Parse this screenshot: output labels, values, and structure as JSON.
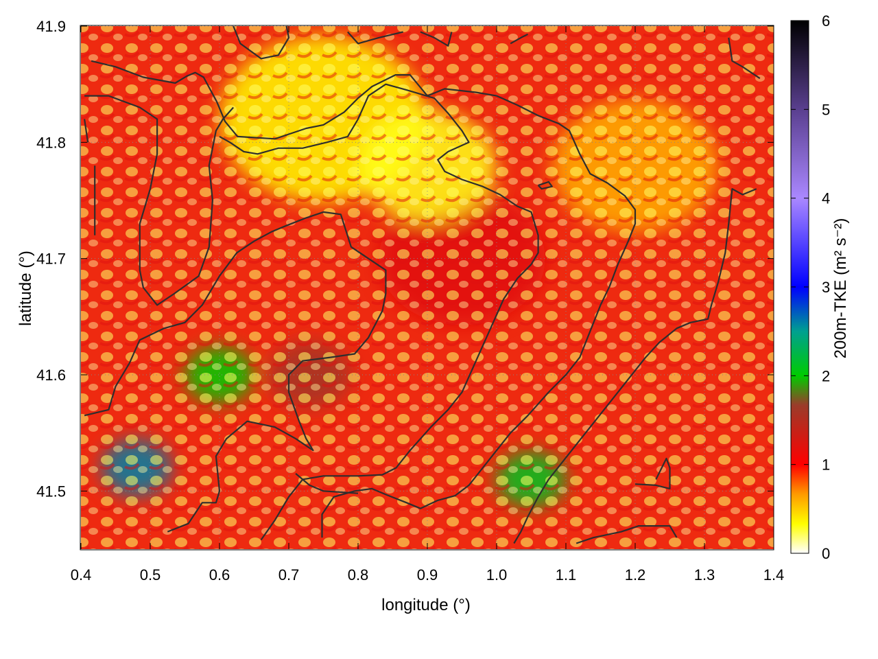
{
  "chart_data": {
    "type": "heatmap",
    "title": "",
    "xlabel": "longitude (°)",
    "ylabel": "latitude (°)",
    "xlim": [
      0.4,
      1.4
    ],
    "ylim": [
      41.45,
      41.9
    ],
    "x_ticks": [
      0.4,
      0.5,
      0.6,
      0.7,
      0.8,
      0.9,
      1.0,
      1.1,
      1.2,
      1.3,
      1.4
    ],
    "x_tick_labels": [
      "0.4",
      "0.5",
      "0.6",
      "0.7",
      "0.8",
      "0.9",
      "1.0",
      "1.1",
      "1.2",
      "1.3",
      "1.4"
    ],
    "y_ticks": [
      41.5,
      41.6,
      41.7,
      41.8,
      41.9
    ],
    "y_tick_labels": [
      "41.5",
      "41.6",
      "41.7",
      "41.8",
      "41.9"
    ],
    "grid": true,
    "colorbar": {
      "label": "200m-TKE (m² s⁻²)",
      "range": [
        0,
        6
      ],
      "ticks": [
        0,
        1,
        2,
        3,
        4,
        5,
        6
      ],
      "tick_labels": [
        "0",
        "1",
        "2",
        "3",
        "4",
        "5",
        "6"
      ],
      "palette": [
        {
          "value": 0,
          "color": "#ffffff"
        },
        {
          "value": 0.33,
          "color": "#ffff00"
        },
        {
          "value": 0.67,
          "color": "#ff9900"
        },
        {
          "value": 1.0,
          "color": "#ff0000"
        },
        {
          "value": 1.67,
          "color": "#9a3c2a"
        },
        {
          "value": 2.0,
          "color": "#00cc00"
        },
        {
          "value": 2.5,
          "color": "#00a090"
        },
        {
          "value": 3.0,
          "color": "#0000ff"
        },
        {
          "value": 4.0,
          "color": "#aa88ff"
        },
        {
          "value": 5.0,
          "color": "#5a3f8f"
        },
        {
          "value": 6.0,
          "color": "#000000"
        }
      ]
    },
    "field_regions": [
      {
        "lon": 0.48,
        "lat": 41.52,
        "r": 0.05,
        "tke": 2.6
      },
      {
        "lon": 0.6,
        "lat": 41.6,
        "r": 0.05,
        "tke": 2.0
      },
      {
        "lon": 0.73,
        "lat": 41.6,
        "r": 0.06,
        "tke": 1.6
      },
      {
        "lon": 1.05,
        "lat": 41.51,
        "r": 0.05,
        "tke": 2.1
      },
      {
        "lon": 0.95,
        "lat": 41.7,
        "r": 0.12,
        "tke": 1.2
      },
      {
        "lon": 0.75,
        "lat": 41.82,
        "r": 0.15,
        "tke": 0.35
      },
      {
        "lon": 1.2,
        "lat": 41.78,
        "r": 0.12,
        "tke": 0.6
      },
      {
        "lon": 0.9,
        "lat": 41.78,
        "r": 0.1,
        "tke": 0.3
      }
    ],
    "contours": [
      [
        [
          0.415,
          41.87
        ],
        [
          0.45,
          41.865
        ],
        [
          0.49,
          41.856
        ],
        [
          0.536,
          41.851
        ],
        [
          0.553,
          41.857
        ],
        [
          0.565,
          41.86
        ],
        [
          0.577,
          41.856
        ],
        [
          0.596,
          41.835
        ],
        [
          0.608,
          41.818
        ],
        [
          0.626,
          41.805
        ],
        [
          0.68,
          41.803
        ],
        [
          0.725,
          41.812
        ],
        [
          0.75,
          41.815
        ],
        [
          0.78,
          41.826
        ],
        [
          0.8,
          41.838
        ],
        [
          0.82,
          41.848
        ],
        [
          0.854,
          41.858
        ],
        [
          0.875,
          41.858
        ],
        [
          0.9,
          41.84
        ],
        [
          0.925,
          41.846
        ],
        [
          0.97,
          41.843
        ],
        [
          1.0,
          41.84
        ],
        [
          1.03,
          41.832
        ],
        [
          1.06,
          41.823
        ],
        [
          1.09,
          41.816
        ],
        [
          1.105,
          41.81
        ],
        [
          1.12,
          41.79
        ],
        [
          1.135,
          41.773
        ],
        [
          1.16,
          41.765
        ],
        [
          1.185,
          41.754
        ],
        [
          1.2,
          41.742
        ],
        [
          1.2,
          41.73
        ],
        [
          1.19,
          41.715
        ],
        [
          1.175,
          41.695
        ],
        [
          1.163,
          41.676
        ],
        [
          1.15,
          41.66
        ],
        [
          1.14,
          41.645
        ],
        [
          1.13,
          41.63
        ],
        [
          1.12,
          41.615
        ],
        [
          1.1,
          41.6
        ],
        [
          1.075,
          41.585
        ],
        [
          1.045,
          41.565
        ],
        [
          1.02,
          41.55
        ],
        [
          1.0,
          41.535
        ],
        [
          0.98,
          41.52
        ],
        [
          0.96,
          41.505
        ],
        [
          0.94,
          41.496
        ],
        [
          0.915,
          41.492
        ],
        [
          0.89,
          41.485
        ],
        [
          0.87,
          41.49
        ],
        [
          0.84,
          41.497
        ],
        [
          0.82,
          41.502
        ],
        [
          0.795,
          41.5
        ],
        [
          0.765,
          41.495
        ],
        [
          0.748,
          41.48
        ],
        [
          0.748,
          41.46
        ]
      ],
      [
        [
          0.405,
          41.84
        ],
        [
          0.44,
          41.84
        ],
        [
          0.485,
          41.83
        ],
        [
          0.51,
          41.82
        ],
        [
          0.51,
          41.79
        ],
        [
          0.5,
          41.76
        ],
        [
          0.485,
          41.73
        ],
        [
          0.485,
          41.69
        ],
        [
          0.49,
          41.675
        ],
        [
          0.51,
          41.66
        ],
        [
          0.535,
          41.67
        ],
        [
          0.57,
          41.685
        ],
        [
          0.585,
          41.71
        ],
        [
          0.59,
          41.75
        ],
        [
          0.585,
          41.78
        ],
        [
          0.595,
          41.81
        ],
        [
          0.605,
          41.82
        ],
        [
          0.62,
          41.83
        ]
      ],
      [
        [
          0.405,
          41.82
        ],
        [
          0.41,
          41.8
        ]
      ],
      [
        [
          0.42,
          41.72
        ],
        [
          0.42,
          41.78
        ]
      ],
      [
        [
          0.405,
          41.565
        ],
        [
          0.44,
          41.57
        ],
        [
          0.45,
          41.59
        ],
        [
          0.47,
          41.61
        ],
        [
          0.485,
          41.63
        ],
        [
          0.52,
          41.64
        ],
        [
          0.55,
          41.645
        ],
        [
          0.575,
          41.66
        ],
        [
          0.6,
          41.685
        ],
        [
          0.625,
          41.705
        ],
        [
          0.65,
          41.715
        ],
        [
          0.675,
          41.723
        ],
        [
          0.695,
          41.728
        ],
        [
          0.725,
          41.735
        ],
        [
          0.75,
          41.74
        ],
        [
          0.775,
          41.738
        ],
        [
          0.79,
          41.71
        ],
        [
          0.84,
          41.69
        ],
        [
          0.84,
          41.67
        ],
        [
          0.835,
          41.655
        ],
        [
          0.815,
          41.632
        ],
        [
          0.795,
          41.618
        ],
        [
          0.76,
          41.615
        ],
        [
          0.72,
          41.612
        ],
        [
          0.7,
          41.6
        ],
        [
          0.7,
          41.585
        ],
        [
          0.715,
          41.56
        ],
        [
          0.725,
          41.545
        ],
        [
          0.735,
          41.535
        ],
        [
          0.71,
          41.545
        ],
        [
          0.68,
          41.555
        ],
        [
          0.64,
          41.56
        ],
        [
          0.61,
          41.545
        ],
        [
          0.595,
          41.53
        ],
        [
          0.6,
          41.5
        ],
        [
          0.595,
          41.49
        ],
        [
          0.575,
          41.49
        ],
        [
          0.555,
          41.472
        ],
        [
          0.525,
          41.465
        ]
      ],
      [
        [
          0.66,
          41.458
        ],
        [
          0.68,
          41.475
        ],
        [
          0.7,
          41.495
        ],
        [
          0.72,
          41.51
        ],
        [
          0.75,
          41.513
        ],
        [
          0.8,
          41.513
        ],
        [
          0.835,
          41.514
        ],
        [
          0.855,
          41.52
        ],
        [
          0.875,
          41.535
        ],
        [
          0.905,
          41.555
        ],
        [
          0.93,
          41.57
        ],
        [
          0.95,
          41.585
        ],
        [
          0.965,
          41.605
        ],
        [
          0.98,
          41.625
        ],
        [
          0.995,
          41.645
        ],
        [
          1.01,
          41.665
        ],
        [
          1.03,
          41.683
        ],
        [
          1.05,
          41.695
        ],
        [
          1.06,
          41.705
        ],
        [
          1.06,
          41.72
        ],
        [
          1.05,
          41.74
        ],
        [
          1.03,
          41.745
        ],
        [
          1.005,
          41.755
        ],
        [
          0.98,
          41.762
        ],
        [
          0.95,
          41.768
        ],
        [
          0.925,
          41.775
        ],
        [
          0.915,
          41.785
        ],
        [
          0.93,
          41.792
        ],
        [
          0.96,
          41.8
        ],
        [
          0.95,
          41.81
        ],
        [
          0.93,
          41.825
        ],
        [
          0.91,
          41.838
        ],
        [
          0.87,
          41.845
        ],
        [
          0.84,
          41.85
        ],
        [
          0.815,
          41.84
        ],
        [
          0.8,
          41.82
        ],
        [
          0.785,
          41.805
        ],
        [
          0.755,
          41.8
        ],
        [
          0.72,
          41.795
        ],
        [
          0.685,
          41.795
        ],
        [
          0.655,
          41.79
        ],
        [
          0.635,
          41.792
        ],
        [
          0.615,
          41.8
        ],
        [
          0.6,
          41.805
        ]
      ],
      [
        [
          0.71,
          41.515
        ],
        [
          0.73,
          41.505
        ],
        [
          0.75,
          41.5
        ],
        [
          0.8,
          41.498
        ]
      ],
      [
        [
          1.025,
          41.455
        ],
        [
          1.035,
          41.465
        ],
        [
          1.045,
          41.478
        ],
        [
          1.06,
          41.495
        ],
        [
          1.075,
          41.51
        ],
        [
          1.095,
          41.525
        ],
        [
          1.115,
          41.54
        ],
        [
          1.135,
          41.555
        ],
        [
          1.155,
          41.57
        ],
        [
          1.175,
          41.585
        ],
        [
          1.195,
          41.6
        ],
        [
          1.215,
          41.615
        ],
        [
          1.235,
          41.628
        ],
        [
          1.26,
          41.64
        ],
        [
          1.28,
          41.645
        ],
        [
          1.305,
          41.648
        ],
        [
          1.31,
          41.66
        ],
        [
          1.32,
          41.68
        ],
        [
          1.33,
          41.705
        ],
        [
          1.335,
          41.73
        ],
        [
          1.34,
          41.76
        ],
        [
          1.355,
          41.755
        ],
        [
          1.375,
          41.76
        ]
      ],
      [
        [
          1.115,
          41.455
        ],
        [
          1.14,
          41.46
        ],
        [
          1.18,
          41.465
        ],
        [
          1.205,
          41.47
        ],
        [
          1.25,
          41.47
        ],
        [
          1.26,
          41.46
        ]
      ],
      [
        [
          1.2,
          41.506
        ],
        [
          1.23,
          41.505
        ],
        [
          1.25,
          41.502
        ],
        [
          1.25,
          41.52
        ],
        [
          1.245,
          41.528
        ],
        [
          1.23,
          41.51
        ]
      ],
      [
        [
          0.62,
          41.9
        ],
        [
          0.63,
          41.885
        ],
        [
          0.66,
          41.872
        ],
        [
          0.685,
          41.875
        ],
        [
          0.7,
          41.89
        ],
        [
          0.695,
          41.905
        ]
      ],
      [
        [
          0.785,
          41.895
        ],
        [
          0.8,
          41.885
        ],
        [
          0.83,
          41.89
        ],
        [
          0.865,
          41.895
        ]
      ],
      [
        [
          0.89,
          41.895
        ],
        [
          0.91,
          41.89
        ],
        [
          0.93,
          41.883
        ],
        [
          0.935,
          41.895
        ]
      ],
      [
        [
          1.02,
          41.885
        ],
        [
          1.035,
          41.89
        ],
        [
          1.045,
          41.893
        ]
      ],
      [
        [
          1.335,
          41.89
        ],
        [
          1.34,
          41.87
        ],
        [
          1.355,
          41.865
        ],
        [
          1.38,
          41.855
        ]
      ],
      [
        [
          1.06,
          41.763
        ],
        [
          1.075,
          41.766
        ],
        [
          1.08,
          41.762
        ],
        [
          1.065,
          41.76
        ],
        [
          1.06,
          41.763
        ]
      ]
    ]
  }
}
